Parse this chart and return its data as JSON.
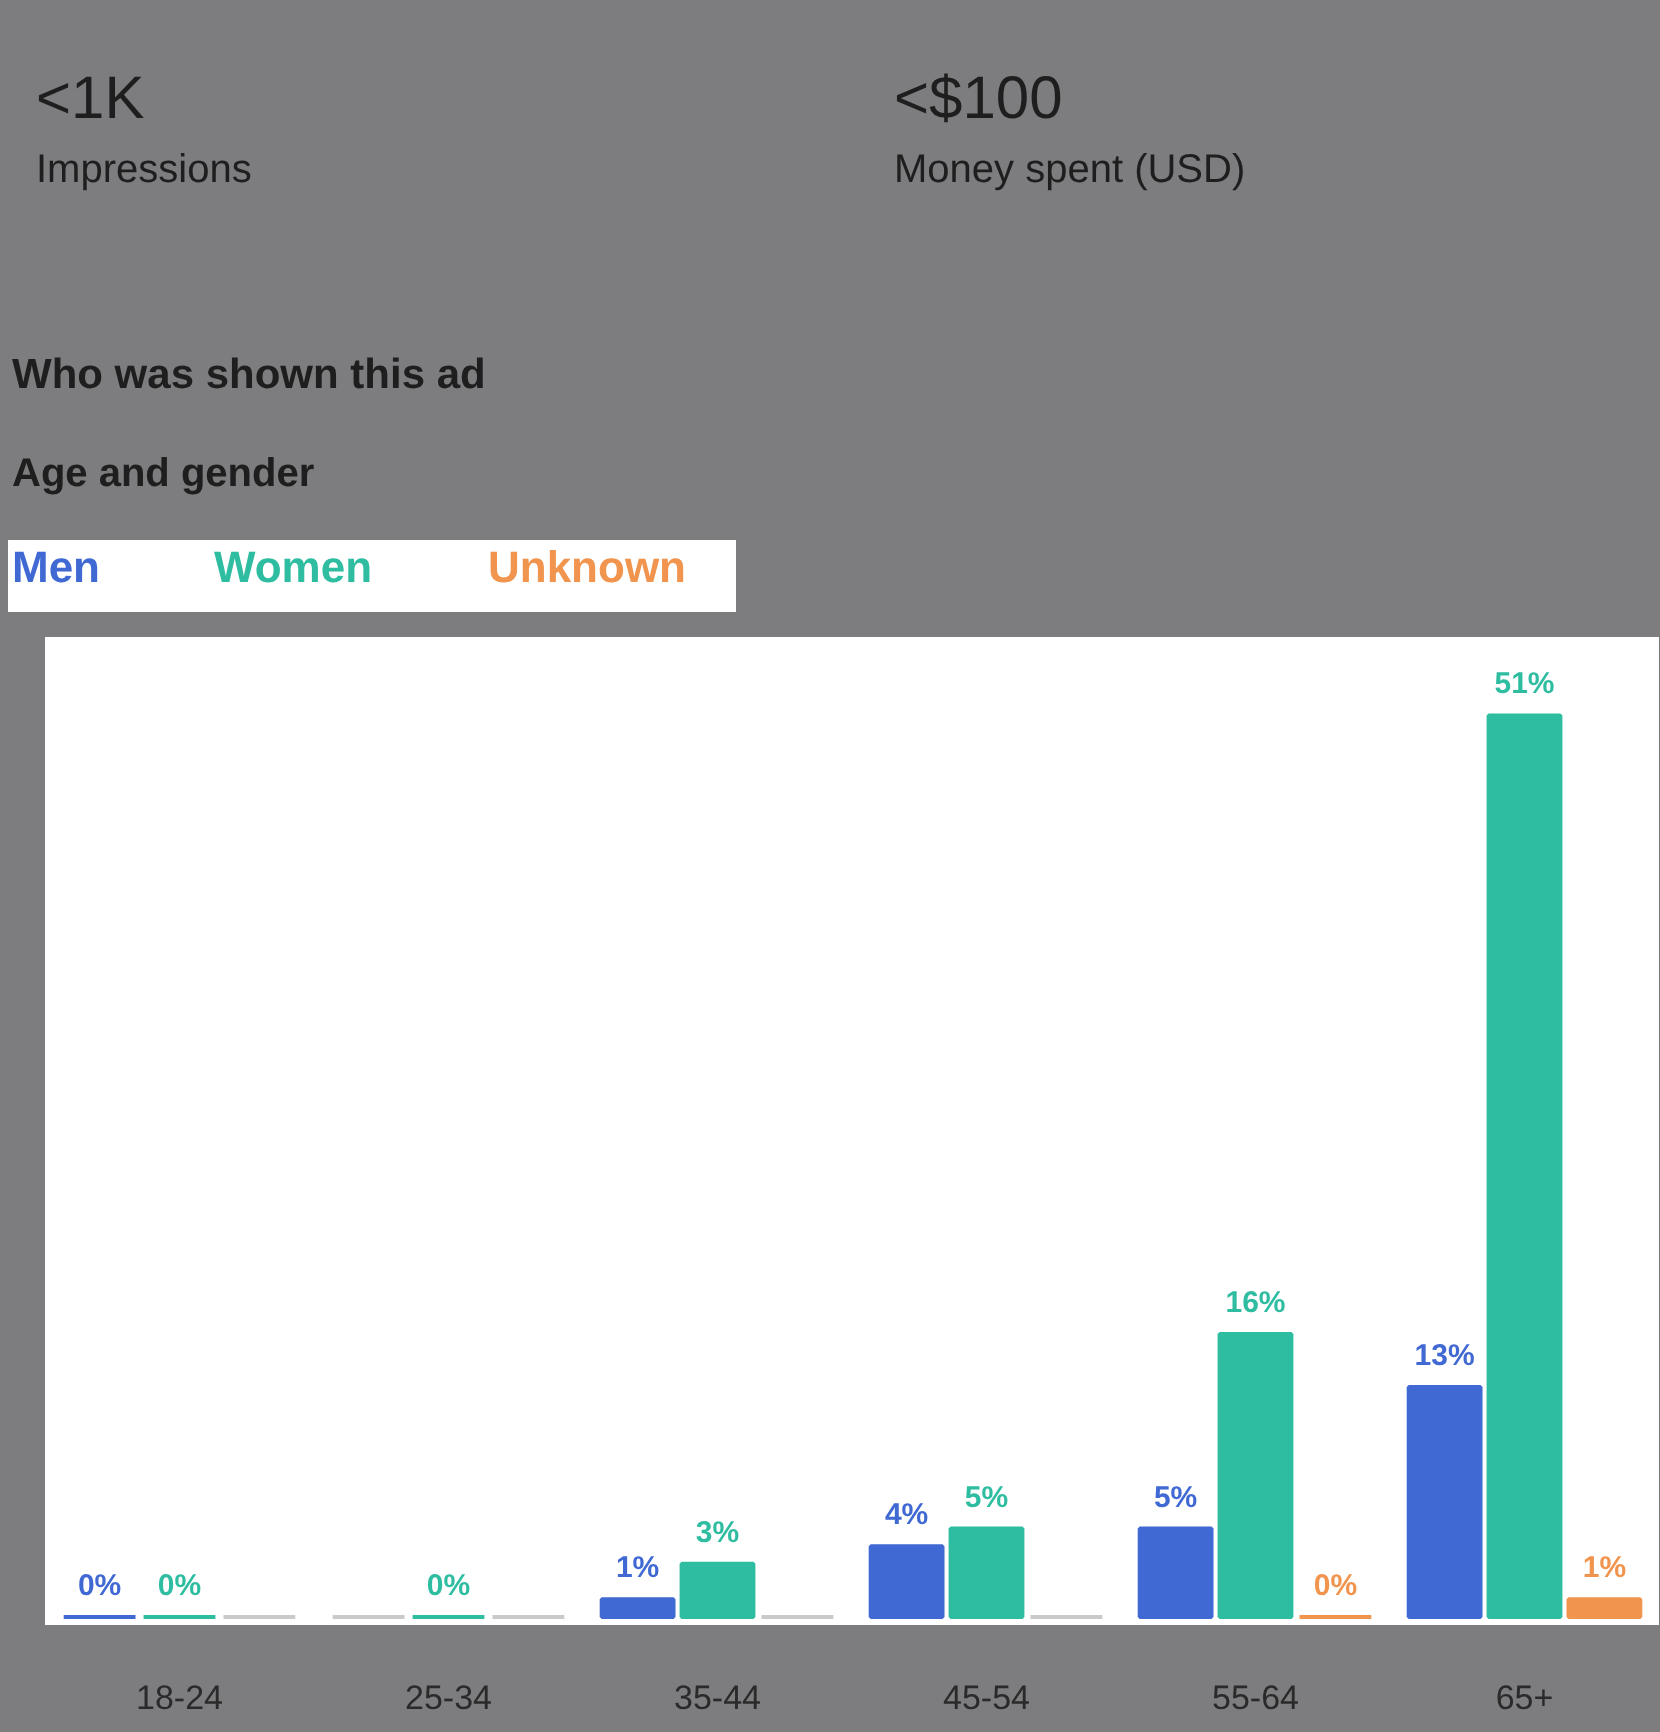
{
  "chart_data": {
    "type": "bar",
    "title": "Who was shown this ad",
    "subtitle": "Age and gender",
    "annotations": [
      "<1K",
      "Impressions",
      "<$100",
      "Money spent (USD)"
    ],
    "categories": [
      "18-24",
      "25-34",
      "35-44",
      "45-54",
      "55-64",
      "65+"
    ],
    "series": [
      {
        "name": "Men",
        "color": "#4169d3",
        "colors": [
          "#4169d3",
          "#c9c9cc",
          "#4169d3",
          "#4169d3",
          "#4169d3",
          "#4169d3"
        ],
        "values": [
          0,
          0,
          1,
          4,
          5,
          13
        ],
        "value_labels": [
          "0%",
          null,
          "1%",
          "4%",
          "5%",
          "13%"
        ]
      },
      {
        "name": "Women",
        "color": "#2fbda2",
        "values": [
          0,
          0,
          3,
          5,
          16,
          51
        ],
        "value_labels": [
          "0%",
          "0%",
          "3%",
          "5%",
          "16%",
          "51%"
        ]
      },
      {
        "name": "Unknown",
        "color": "#f0944e",
        "colors": [
          "#c9c9cc",
          "#c9c9cc",
          "#c9c9cc",
          "#c9c9cc",
          "#f0944e",
          "#f0944e"
        ],
        "values": [
          0,
          0,
          0,
          0,
          0,
          1
        ],
        "value_labels": [
          null,
          null,
          null,
          null,
          "0%",
          "1%"
        ]
      }
    ],
    "legend": "top left",
    "tick_labels": "x"
  }
}
